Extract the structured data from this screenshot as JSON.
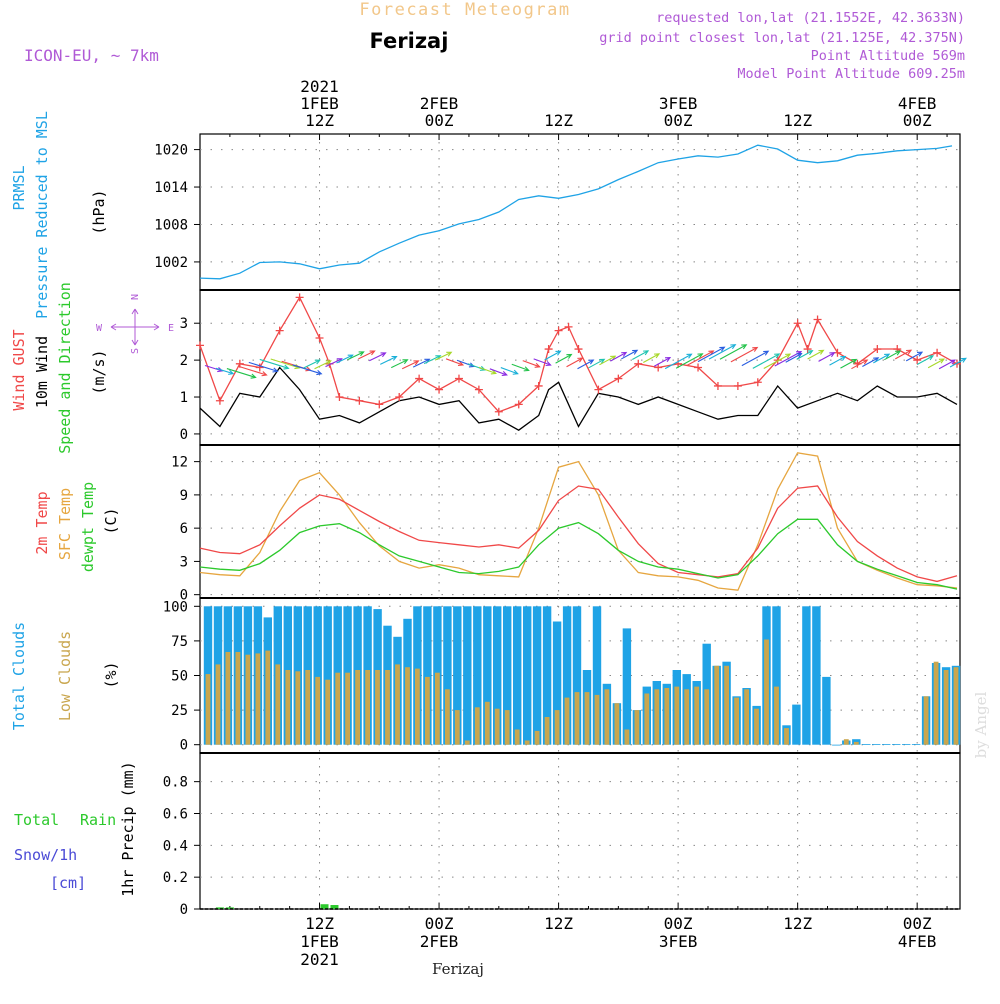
{
  "header": {
    "title": "Forecast Meteogram",
    "location": "Ferizaj",
    "model": "ICON-EU, ~ 7km",
    "requested": "requested lon,lat (21.1552E, 42.3633N)",
    "gridpoint": "grid point closest lon,lat (21.125E, 42.375N)",
    "point_alt": "Point Altitude 569m",
    "model_alt": "Model Point Altitude 609.25m"
  },
  "footer": {
    "location": "Ferizaj",
    "credit": "by Angel"
  },
  "colors": {
    "pressure": "#1fa3e6",
    "gust": "#f04848",
    "wind": "#000000",
    "temp2m": "#f04848",
    "sfc": "#e6a640",
    "dew": "#2cc92c",
    "total_clouds": "#1fa3e6",
    "low_clouds": "#c9a64e",
    "rain": "#2cc92c",
    "snow": "#4a4ad6",
    "purple": "#b05ad6",
    "title_orange": "#f2c78a"
  },
  "time_axis": {
    "top": [
      {
        "hour": 12,
        "lines": [
          "2021",
          "1FEB",
          "12Z"
        ]
      },
      {
        "hour": 24,
        "lines": [
          "2FEB",
          "00Z"
        ]
      },
      {
        "hour": 36,
        "lines": [
          "12Z"
        ]
      },
      {
        "hour": 48,
        "lines": [
          "3FEB",
          "00Z"
        ]
      },
      {
        "hour": 60,
        "lines": [
          "12Z"
        ]
      },
      {
        "hour": 72,
        "lines": [
          "4FEB",
          "00Z"
        ]
      }
    ],
    "bottom": [
      {
        "hour": 12,
        "lines": [
          "12Z",
          "1FEB",
          "2021"
        ]
      },
      {
        "hour": 24,
        "lines": [
          "00Z",
          "2FEB"
        ]
      },
      {
        "hour": 36,
        "lines": [
          "12Z"
        ]
      },
      {
        "hour": 48,
        "lines": [
          "00Z",
          "3FEB"
        ]
      },
      {
        "hour": 60,
        "lines": [
          "12Z"
        ]
      },
      {
        "hour": 72,
        "lines": [
          "00Z",
          "4FEB"
        ]
      }
    ]
  },
  "chart_data": [
    {
      "type": "line",
      "id": "pressure",
      "ylabel": [
        "PRMSL",
        "Pressure Reduced to MSL",
        "(hPa)"
      ],
      "ylim": [
        997.5,
        1022.5
      ],
      "yticks": [
        1002,
        1008,
        1014,
        1020
      ],
      "series": [
        {
          "name": "PRMSL",
          "x": [
            0,
            2,
            4,
            6,
            8,
            10,
            12,
            14,
            16,
            18,
            20,
            22,
            24,
            26,
            28,
            30,
            32,
            34,
            36,
            38,
            40,
            42,
            44,
            46,
            48,
            50,
            52,
            54,
            56,
            58,
            60,
            62,
            64,
            66,
            68,
            70,
            72,
            74,
            75.5
          ],
          "values": [
            999.4,
            999.3,
            1000.2,
            1001.9,
            1002.0,
            1001.7,
            1000.9,
            1001.5,
            1001.8,
            1003.6,
            1005.0,
            1006.3,
            1007.0,
            1008.1,
            1008.8,
            1010.0,
            1012.0,
            1012.6,
            1012.2,
            1012.8,
            1013.7,
            1015.2,
            1016.5,
            1017.9,
            1018.5,
            1019.0,
            1018.8,
            1019.3,
            1020.7,
            1020.1,
            1018.3,
            1017.9,
            1018.2,
            1019.1,
            1019.4,
            1019.8,
            1020.0,
            1020.2,
            1020.6
          ]
        }
      ]
    },
    {
      "type": "line",
      "id": "wind",
      "ylabel": [
        "Wind GUST",
        "10m Wind",
        "Speed and Direction",
        "(m/s)"
      ],
      "ylim": [
        -0.3,
        3.9
      ],
      "yticks": [
        0,
        1,
        2,
        3
      ],
      "compass": [
        "N",
        "S",
        "W",
        "E"
      ],
      "series": [
        {
          "name": "Wind GUST",
          "x": [
            0,
            2,
            4,
            6,
            8,
            10,
            12,
            13,
            14,
            16,
            18,
            20,
            22,
            24,
            26,
            28,
            30,
            32,
            34,
            35,
            36,
            37,
            38,
            40,
            42,
            44,
            46,
            48,
            50,
            52,
            54,
            56,
            58,
            60,
            61,
            62,
            64,
            66,
            68,
            70,
            72,
            74,
            76
          ],
          "values": [
            2.4,
            0.9,
            1.9,
            1.8,
            2.8,
            3.7,
            2.6,
            1.9,
            1.0,
            0.9,
            0.8,
            1.0,
            1.5,
            1.2,
            1.5,
            1.2,
            0.6,
            0.8,
            1.3,
            2.3,
            2.8,
            2.9,
            2.3,
            1.2,
            1.5,
            1.9,
            1.8,
            1.9,
            1.8,
            1.3,
            1.3,
            1.4,
            2.0,
            3.0,
            2.3,
            3.1,
            2.2,
            1.9,
            2.3,
            2.3,
            2.0,
            2.2,
            1.9
          ]
        },
        {
          "name": "10m Wind",
          "x": [
            0,
            2,
            4,
            6,
            8,
            10,
            12,
            14,
            16,
            18,
            20,
            22,
            24,
            26,
            28,
            30,
            32,
            34,
            35,
            36,
            38,
            40,
            42,
            44,
            46,
            48,
            50,
            52,
            54,
            56,
            58,
            60,
            62,
            64,
            66,
            68,
            70,
            72,
            74,
            76
          ],
          "values": [
            0.7,
            0.2,
            1.1,
            1.0,
            1.8,
            1.2,
            0.4,
            0.5,
            0.3,
            0.6,
            0.9,
            1.0,
            0.8,
            0.9,
            0.3,
            0.4,
            0.1,
            0.5,
            1.2,
            1.4,
            0.2,
            1.1,
            1.0,
            0.8,
            1.0,
            0.8,
            0.6,
            0.4,
            0.5,
            0.5,
            1.3,
            0.7,
            0.9,
            1.1,
            0.9,
            1.3,
            1.0,
            1.0,
            1.1,
            0.8
          ]
        }
      ]
    },
    {
      "type": "line",
      "id": "temperature",
      "ylabel": [
        "2m Temp",
        "SFC Temp",
        "dewpt Temp",
        "(C)"
      ],
      "ylim": [
        -0.3,
        13.5
      ],
      "yticks": [
        0,
        3,
        6,
        9,
        12
      ],
      "series": [
        {
          "name": "2m Temp",
          "x": [
            0,
            2,
            4,
            6,
            8,
            10,
            12,
            14,
            16,
            18,
            20,
            22,
            24,
            26,
            28,
            30,
            32,
            34,
            36,
            38,
            40,
            42,
            44,
            46,
            48,
            50,
            52,
            54,
            56,
            58,
            60,
            62,
            64,
            66,
            68,
            70,
            72,
            74,
            76
          ],
          "values": [
            4.2,
            3.8,
            3.7,
            4.5,
            6.2,
            7.8,
            9.0,
            8.6,
            7.6,
            6.6,
            5.7,
            4.9,
            4.7,
            4.5,
            4.3,
            4.5,
            4.2,
            5.8,
            8.5,
            9.8,
            9.5,
            7.0,
            4.6,
            2.8,
            2.0,
            1.8,
            1.6,
            1.9,
            4.2,
            7.8,
            9.6,
            9.8,
            7.0,
            4.8,
            3.5,
            2.4,
            1.6,
            1.2,
            1.7
          ]
        },
        {
          "name": "SFC Temp",
          "x": [
            0,
            2,
            4,
            6,
            8,
            10,
            12,
            14,
            16,
            18,
            20,
            22,
            24,
            26,
            28,
            30,
            32,
            34,
            36,
            38,
            40,
            42,
            44,
            46,
            48,
            50,
            52,
            54,
            56,
            58,
            60,
            62,
            64,
            66,
            68,
            70,
            72,
            74,
            76
          ],
          "values": [
            2.0,
            1.8,
            1.7,
            3.8,
            7.5,
            10.3,
            11.0,
            9.0,
            6.5,
            4.4,
            3.0,
            2.4,
            2.7,
            2.4,
            1.8,
            1.7,
            1.6,
            6.0,
            11.5,
            12.0,
            9.0,
            4.0,
            2.0,
            1.7,
            1.6,
            1.3,
            0.6,
            0.4,
            4.5,
            9.5,
            12.8,
            12.5,
            6.0,
            3.0,
            2.2,
            1.5,
            0.9,
            0.8,
            0.6
          ]
        },
        {
          "name": "dewpt Temp",
          "x": [
            0,
            2,
            4,
            6,
            8,
            10,
            12,
            14,
            16,
            18,
            20,
            22,
            24,
            26,
            28,
            30,
            32,
            34,
            36,
            38,
            40,
            42,
            44,
            46,
            48,
            50,
            52,
            54,
            56,
            58,
            60,
            62,
            64,
            66,
            68,
            70,
            72,
            74,
            76
          ],
          "values": [
            2.5,
            2.3,
            2.2,
            2.8,
            4.0,
            5.6,
            6.2,
            6.4,
            5.6,
            4.5,
            3.5,
            3.0,
            2.5,
            2.0,
            1.9,
            2.1,
            2.5,
            4.5,
            6.0,
            6.5,
            5.5,
            4.0,
            3.0,
            2.5,
            2.3,
            1.9,
            1.5,
            1.8,
            3.5,
            5.5,
            6.8,
            6.8,
            4.5,
            3.0,
            2.3,
            1.7,
            1.1,
            0.9,
            0.5
          ]
        }
      ]
    },
    {
      "type": "bar",
      "id": "clouds",
      "ylabel": [
        "Total Clouds",
        "Low Clouds",
        "(%)"
      ],
      "ylim": [
        -6,
        106
      ],
      "yticks": [
        0,
        25,
        50,
        75,
        100
      ],
      "series": [
        {
          "name": "Total Clouds",
          "values": [
            100,
            100,
            100,
            100,
            100,
            100,
            92,
            100,
            100,
            100,
            100,
            100,
            100,
            100,
            100,
            100,
            100,
            98,
            86,
            78,
            91,
            100,
            100,
            100,
            100,
            100,
            100,
            100,
            100,
            100,
            100,
            100,
            100,
            100,
            100,
            89,
            100,
            100,
            54,
            100,
            44,
            30,
            84,
            25,
            42,
            46,
            44,
            54,
            51,
            46,
            73,
            57,
            60,
            35,
            41,
            28,
            100,
            100,
            14,
            29,
            100,
            100,
            49,
            0,
            3,
            4,
            0.5,
            0.5,
            0.5,
            0.5,
            0.5,
            0.5,
            35,
            59,
            56,
            57
          ]
        },
        {
          "name": "Low Clouds",
          "values": [
            51,
            58,
            67,
            67,
            65,
            66,
            68,
            58,
            54,
            53,
            54,
            49,
            47,
            52,
            52,
            54,
            54,
            54,
            54,
            58,
            56,
            55,
            49,
            52,
            40,
            25,
            3,
            27,
            31,
            26,
            25,
            11,
            3,
            10,
            20,
            25,
            34,
            38,
            38,
            36,
            40,
            30,
            11,
            25,
            37,
            40,
            41,
            42,
            40,
            42,
            40,
            57,
            57,
            34,
            40,
            26,
            76,
            42,
            12,
            0,
            0,
            0,
            0,
            0,
            4,
            2,
            0,
            0,
            0,
            0,
            0,
            0,
            35,
            60,
            54,
            56
          ]
        }
      ]
    },
    {
      "type": "bar",
      "id": "precip",
      "ylabel": [
        "Total",
        "Rain",
        "Snow/1h",
        "[cm]",
        "1hr Precip (mm)"
      ],
      "ylim": [
        0,
        0.98
      ],
      "yticks": [
        0,
        0.2,
        0.4,
        0.6,
        0.8
      ],
      "series": [
        {
          "name": "Rain",
          "x": [
            2,
            3,
            12.5,
            13.5
          ],
          "values": [
            0.01,
            0.01,
            0.03,
            0.025
          ]
        }
      ]
    }
  ]
}
